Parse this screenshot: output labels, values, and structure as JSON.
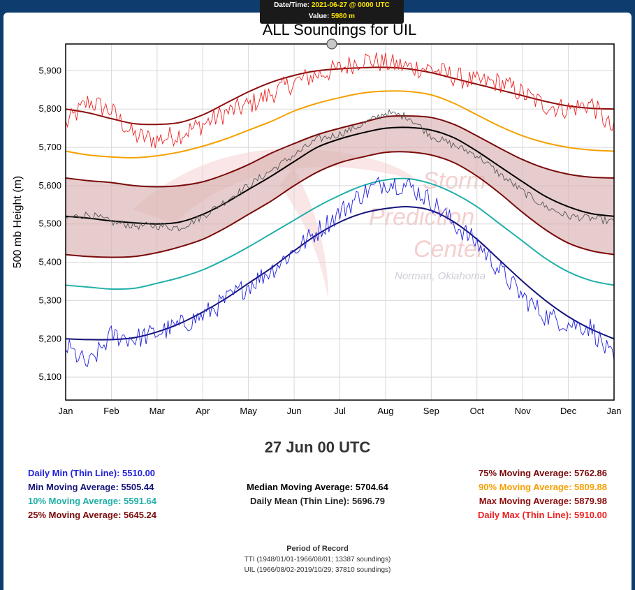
{
  "tooltip": {
    "datetime_label": "Date/Time:",
    "datetime_value": "2021-06-27 @ 0000 UTC",
    "value_label": "Value:",
    "value_value": "5980 m"
  },
  "colors": {
    "daily_min": "#2020dd",
    "min_ma": "#14147a",
    "p10": "#20b0a8",
    "p25": "#7a0a0a",
    "median": "#000000",
    "daily_mean": "#555555",
    "p75": "#7a0a0a",
    "p90": "#f5a000",
    "max_ma": "#8b0d0d",
    "daily_max": "#ee2222",
    "band": "#d9b0b0"
  },
  "watermark": {
    "line1": "Storm",
    "line2": "Prediction",
    "line3": "Center",
    "line4": "Norman, Oklahoma"
  },
  "date_heading": "27 Jun 00 UTC",
  "stats": {
    "daily_min": "Daily Min (Thin Line): 5510.00",
    "min_ma": "Min Moving Average: 5505.44",
    "p10": "10% Moving Average: 5591.64",
    "p25": "25% Moving Average: 5645.24",
    "median": "Median Moving Average: 5704.64",
    "daily_mean": "Daily Mean (Thin Line): 5696.79",
    "p75": "75% Moving Average: 5762.86",
    "p90": "90% Moving Average: 5809.88",
    "max_ma": "Max Moving Average: 5879.98",
    "daily_max": "Daily Max (Thin Line): 5910.00"
  },
  "record": {
    "heading": "Period of Record",
    "line1": "TTI (1948/01/01-1966/08/01; 13387 soundings)",
    "line2": "UIL (1966/08/02-2019/10/29; 37810 soundings)"
  },
  "chart_data": {
    "type": "line",
    "title": "ALL Soundings for UIL",
    "ylabel": "500 mb Height (m)",
    "xlabel": "",
    "ylim": [
      5040,
      5970
    ],
    "xlim": [
      0,
      12
    ],
    "yticks": [
      5100,
      5200,
      5300,
      5400,
      5500,
      5600,
      5700,
      5800,
      5900
    ],
    "ytick_labels": [
      "5,100",
      "5,200",
      "5,300",
      "5,400",
      "5,500",
      "5,600",
      "5,700",
      "5,800",
      "5,900"
    ],
    "categories": [
      "Jan",
      "Feb",
      "Mar",
      "Apr",
      "May",
      "Jun",
      "Jul",
      "Aug",
      "Sep",
      "Oct",
      "Nov",
      "Dec",
      "Jan"
    ],
    "grid": true,
    "legend": "none",
    "x": [
      0,
      0.5,
      1,
      1.5,
      2,
      2.5,
      3,
      3.5,
      4,
      4.5,
      5,
      5.5,
      6,
      6.5,
      7,
      7.5,
      8,
      8.5,
      9,
      9.5,
      10,
      10.5,
      11,
      11.5,
      12
    ],
    "series": [
      {
        "name": "Max Moving Average",
        "style": "thick",
        "color_key": "max_ma",
        "values": [
          5800,
          5790,
          5775,
          5762,
          5760,
          5765,
          5785,
          5815,
          5845,
          5870,
          5888,
          5900,
          5905,
          5908,
          5909,
          5905,
          5895,
          5880,
          5865,
          5850,
          5835,
          5820,
          5808,
          5802,
          5800
        ]
      },
      {
        "name": "90% Moving Average",
        "style": "thick",
        "color_key": "p90",
        "values": [
          5690,
          5680,
          5675,
          5673,
          5678,
          5688,
          5703,
          5722,
          5745,
          5768,
          5795,
          5815,
          5830,
          5842,
          5847,
          5846,
          5837,
          5815,
          5785,
          5755,
          5730,
          5712,
          5700,
          5693,
          5690
        ]
      },
      {
        "name": "75% Moving Average",
        "style": "thick",
        "color_key": "p75",
        "values": [
          5620,
          5613,
          5608,
          5600,
          5597,
          5600,
          5610,
          5630,
          5655,
          5685,
          5710,
          5733,
          5750,
          5765,
          5780,
          5782,
          5778,
          5760,
          5730,
          5698,
          5668,
          5645,
          5630,
          5622,
          5620
        ]
      },
      {
        "name": "Median Moving Average",
        "style": "thick",
        "color_key": "median",
        "values": [
          5520,
          5515,
          5508,
          5503,
          5500,
          5505,
          5525,
          5555,
          5590,
          5625,
          5663,
          5700,
          5722,
          5738,
          5750,
          5752,
          5745,
          5725,
          5690,
          5650,
          5610,
          5572,
          5545,
          5527,
          5520
        ]
      },
      {
        "name": "25% Moving Average",
        "style": "thick",
        "color_key": "p25",
        "values": [
          5420,
          5415,
          5413,
          5415,
          5425,
          5440,
          5460,
          5490,
          5525,
          5560,
          5600,
          5635,
          5660,
          5675,
          5687,
          5688,
          5680,
          5660,
          5625,
          5580,
          5530,
          5485,
          5450,
          5430,
          5420
        ]
      },
      {
        "name": "10% Moving Average",
        "style": "thick",
        "color_key": "p10",
        "values": [
          5340,
          5335,
          5330,
          5332,
          5345,
          5360,
          5380,
          5408,
          5440,
          5475,
          5510,
          5545,
          5575,
          5600,
          5615,
          5618,
          5605,
          5580,
          5545,
          5500,
          5455,
          5410,
          5375,
          5352,
          5340
        ]
      },
      {
        "name": "Min Moving Average",
        "style": "thick",
        "color_key": "min_ma",
        "values": [
          5200,
          5198,
          5198,
          5203,
          5218,
          5240,
          5270,
          5305,
          5345,
          5385,
          5430,
          5472,
          5505,
          5528,
          5540,
          5545,
          5535,
          5505,
          5460,
          5405,
          5350,
          5300,
          5258,
          5225,
          5200
        ]
      },
      {
        "name": "Daily Max (Thin Line)",
        "style": "thin",
        "color_key": "daily_max",
        "values": [
          5760,
          5820,
          5795,
          5730,
          5720,
          5735,
          5760,
          5790,
          5810,
          5840,
          5870,
          5890,
          5905,
          5930,
          5920,
          5910,
          5905,
          5885,
          5870,
          5870,
          5840,
          5810,
          5800,
          5815,
          5740
        ]
      },
      {
        "name": "Daily Mean (Thin Line)",
        "style": "thin",
        "color_key": "daily_mean",
        "values": [
          5515,
          5525,
          5505,
          5495,
          5495,
          5490,
          5520,
          5560,
          5600,
          5640,
          5680,
          5720,
          5735,
          5760,
          5790,
          5780,
          5730,
          5705,
          5680,
          5630,
          5585,
          5545,
          5520,
          5515,
          5505
        ]
      },
      {
        "name": "Daily Min (Thin Line)",
        "style": "thin",
        "color_key": "daily_min",
        "values": [
          5180,
          5130,
          5210,
          5200,
          5215,
          5235,
          5260,
          5300,
          5340,
          5380,
          5430,
          5480,
          5530,
          5580,
          5610,
          5600,
          5560,
          5500,
          5450,
          5380,
          5310,
          5260,
          5240,
          5230,
          5140
        ]
      }
    ]
  }
}
